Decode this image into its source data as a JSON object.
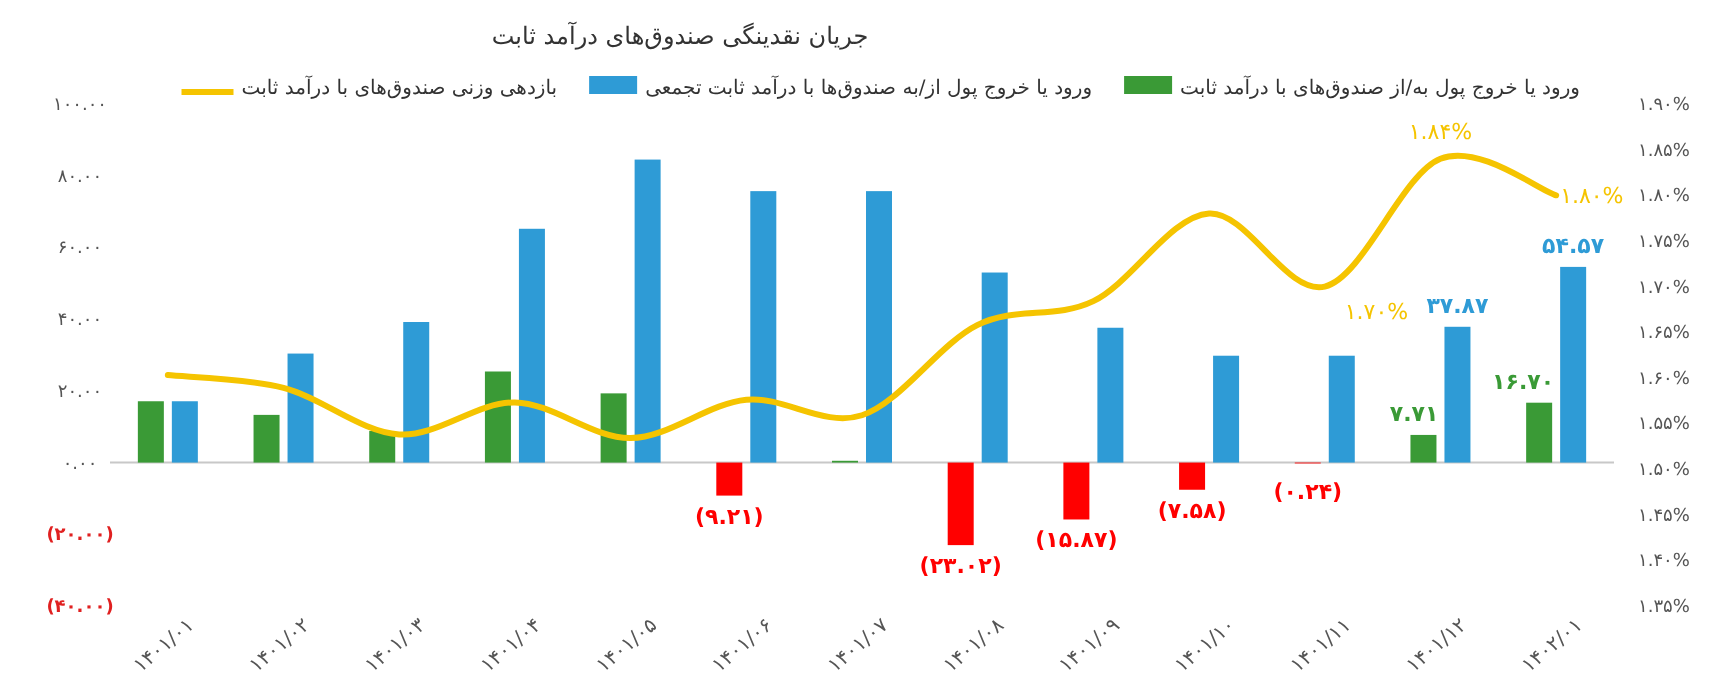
{
  "chart_data": {
    "type": "bar",
    "title": "جریان نقدینگی صندوق‌های درآمد ثابت",
    "categories": [
      "۱۴۰۱/۰۱",
      "۱۴۰۱/۰۲",
      "۱۴۰۱/۰۳",
      "۱۴۰۱/۰۴",
      "۱۴۰۱/۰۵",
      "۱۴۰۱/۰۶",
      "۱۴۰۱/۰۷",
      "۱۴۰۱/۰۸",
      "۱۴۰۱/۰۹",
      "۱۴۰۱/۱۰",
      "۱۴۰۱/۱۱",
      "۱۴۰۱/۱۲",
      "۱۴۰۲/۰۱"
    ],
    "series": [
      {
        "name": "ورود یا خروج پول به/از صندوق‌های با درآمد ثابت",
        "color": "#3a9a36",
        "colors": [
          "#3a9a36",
          "#3a9a36",
          "#3a9a36",
          "#3a9a36",
          "#3a9a36",
          "#ff0000",
          "#3a9a36",
          "#ff0000",
          "#ff0000",
          "#ff0000",
          "#ff0000",
          "#3a9a36",
          "#3a9a36"
        ],
        "values": [
          17.1,
          13.3,
          8.8,
          25.4,
          19.3,
          -9.21,
          0.5,
          -23.02,
          -15.87,
          -7.58,
          -0.24,
          7.71,
          16.7
        ],
        "value_labels": [
          null,
          null,
          null,
          null,
          null,
          "(۹.۲۱)",
          null,
          "(۲۳.۰۲)",
          "(۱۵.۸۷)",
          "(۷.۵۸)",
          "(۰.۲۴)",
          "۷.۷۱",
          "۱۶.۷۰"
        ]
      },
      {
        "name": "ورود یا خروج پول از/به صندوق‌ها با درآمد ثابت تجمعی",
        "color": "#2e9bd6",
        "values": [
          17.1,
          30.4,
          39.2,
          65.2,
          84.5,
          75.7,
          75.7,
          53.0,
          37.6,
          29.8,
          29.8,
          37.87,
          54.57
        ],
        "value_labels": [
          null,
          null,
          null,
          null,
          null,
          null,
          null,
          null,
          null,
          null,
          null,
          "۳۷.۸۷",
          "۵۴.۵۷"
        ]
      },
      {
        "name": "بازدهی وزنی صندوق‌های با درآمد ثابت",
        "type": "line",
        "axis": "y2",
        "color": "#f5c400",
        "values": [
          1.603,
          1.589,
          1.538,
          1.573,
          1.534,
          1.576,
          1.559,
          1.658,
          1.684,
          1.78,
          1.7,
          1.84,
          1.8
        ],
        "value_labels": [
          null,
          null,
          null,
          null,
          null,
          null,
          null,
          null,
          null,
          null,
          "۱.۷۰%",
          "۱.۸۴%",
          "۱.۸۰%"
        ]
      }
    ],
    "ylim": [
      -40,
      100
    ],
    "yticks": [
      {
        "value": -40,
        "label": "(۴۰.۰۰)"
      },
      {
        "value": -20,
        "label": "(۲۰.۰۰)"
      },
      {
        "value": 0,
        "label": "۰.۰۰"
      },
      {
        "value": 20,
        "label": "۲۰.۰۰"
      },
      {
        "value": 40,
        "label": "۴۰.۰۰"
      },
      {
        "value": 60,
        "label": "۶۰.۰۰"
      },
      {
        "value": 80,
        "label": "۸۰.۰۰"
      },
      {
        "value": 100,
        "label": "۱۰۰.۰۰"
      }
    ],
    "y2lim": [
      1.35,
      1.9
    ],
    "y2ticks": [
      {
        "value": 1.35,
        "label": "۱.۳۵%"
      },
      {
        "value": 1.4,
        "label": "۱.۴۰%"
      },
      {
        "value": 1.45,
        "label": "۱.۴۵%"
      },
      {
        "value": 1.5,
        "label": "۱.۵۰%"
      },
      {
        "value": 1.55,
        "label": "۱.۵۵%"
      },
      {
        "value": 1.6,
        "label": "۱.۶۰%"
      },
      {
        "value": 1.65,
        "label": "۱.۶۵%"
      },
      {
        "value": 1.7,
        "label": "۱.۷۰%"
      },
      {
        "value": 1.75,
        "label": "۱.۷۵%"
      },
      {
        "value": 1.8,
        "label": "۱.۸۰%"
      },
      {
        "value": 1.85,
        "label": "۱.۸۵%"
      },
      {
        "value": 1.9,
        "label": "۱.۹۰%"
      }
    ],
    "legend": "top"
  }
}
